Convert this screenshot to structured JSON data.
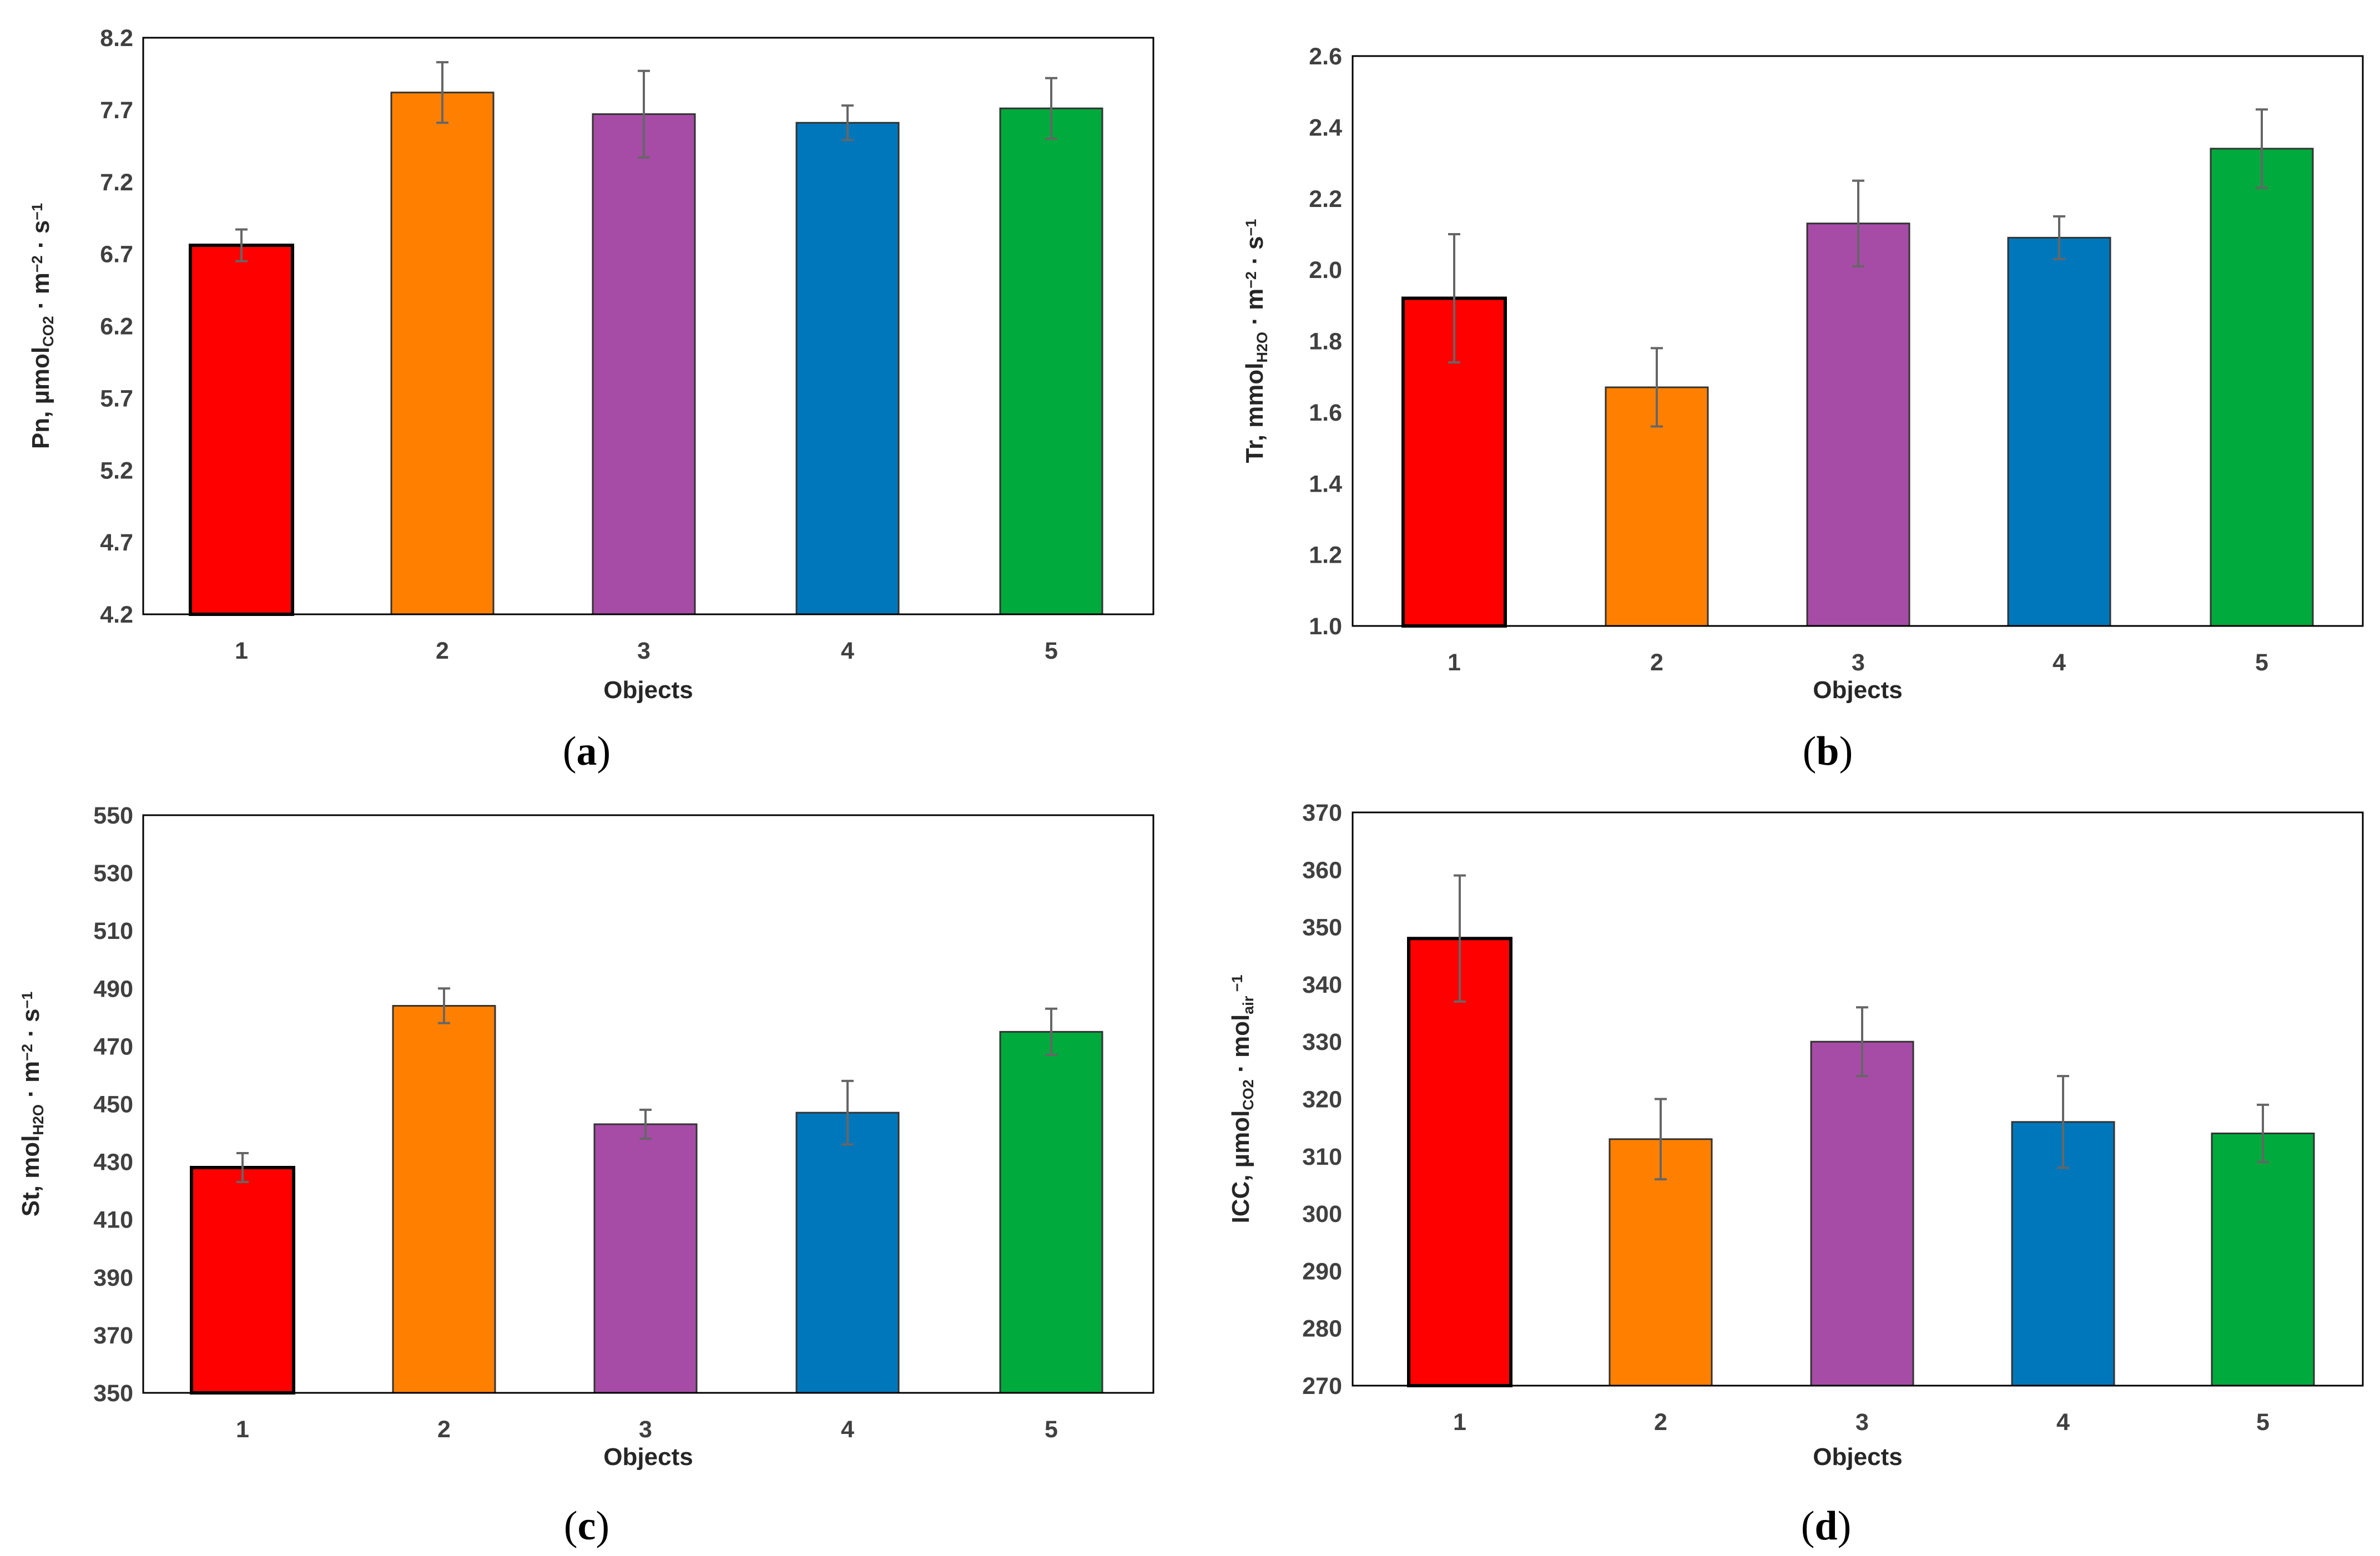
{
  "figure": {
    "panels": [
      {
        "id": "a",
        "label_open": "(",
        "label_letter": "a",
        "label_close": ")",
        "ylabel_parts": [
          {
            "text": "Pn, µmol",
            "style": "normal"
          },
          {
            "text": "CO2",
            "style": "sub"
          },
          {
            "text": " · m",
            "style": "normal"
          },
          {
            "text": "−2",
            "style": "sup"
          },
          {
            "text": " · s",
            "style": "normal"
          },
          {
            "text": "−1",
            "style": "sup"
          }
        ]
      },
      {
        "id": "b",
        "label_open": "(",
        "label_letter": "b",
        "label_close": ")",
        "ylabel_parts": [
          {
            "text": "Tr, mmol",
            "style": "normal"
          },
          {
            "text": "H2O",
            "style": "sub"
          },
          {
            "text": " · m",
            "style": "normal"
          },
          {
            "text": "−2",
            "style": "sup"
          },
          {
            "text": " · s",
            "style": "normal"
          },
          {
            "text": "−1",
            "style": "sup"
          }
        ]
      },
      {
        "id": "c",
        "label_open": "(",
        "label_letter": "c",
        "label_close": ")",
        "ylabel_parts": [
          {
            "text": "St, mol",
            "style": "normal"
          },
          {
            "text": "H2O",
            "style": "sub"
          },
          {
            "text": " · m",
            "style": "normal"
          },
          {
            "text": "−2",
            "style": "sup"
          },
          {
            "text": " · s",
            "style": "normal"
          },
          {
            "text": "−1",
            "style": "sup"
          }
        ]
      },
      {
        "id": "d",
        "label_open": "(",
        "label_letter": "d",
        "label_close": ")",
        "ylabel_parts": [
          {
            "text": "ICC, µmol",
            "style": "normal"
          },
          {
            "text": "CO2",
            "style": "sub"
          },
          {
            "text": " · mol",
            "style": "normal"
          },
          {
            "text": "air",
            "style": "sub"
          },
          {
            "text": " −1",
            "style": "sup"
          }
        ]
      }
    ]
  },
  "chart_data": [
    {
      "type": "bar",
      "title": "",
      "xlabel": "Objects",
      "ylabel": "Pn, µmolCO2 · m−2 · s−1",
      "categories": [
        "1",
        "2",
        "3",
        "4",
        "5"
      ],
      "values": [
        6.76,
        7.82,
        7.67,
        7.61,
        7.71
      ],
      "errors": [
        0.11,
        0.21,
        0.3,
        0.12,
        0.21
      ],
      "colors": [
        "#ff0000",
        "#ff8000",
        "#a64ca6",
        "#0077bb",
        "#00aa3c"
      ],
      "edgecolors": [
        "#000000",
        "#333333",
        "#333333",
        "#333333",
        "#333333"
      ],
      "ylim": [
        4.2,
        8.2
      ],
      "yticks": [
        "4.2",
        "4.7",
        "5.2",
        "5.7",
        "6.2",
        "6.7",
        "7.2",
        "7.7",
        "8.2"
      ],
      "grid": false
    },
    {
      "type": "bar",
      "title": "",
      "xlabel": "Objects",
      "ylabel": "Tr, mmolH2O · m−2 · s−1",
      "categories": [
        "1",
        "2",
        "3",
        "4",
        "5"
      ],
      "values": [
        1.92,
        1.67,
        2.13,
        2.09,
        2.34
      ],
      "errors": [
        0.18,
        0.11,
        0.12,
        0.06,
        0.11
      ],
      "colors": [
        "#ff0000",
        "#ff8000",
        "#a64ca6",
        "#0077bb",
        "#00aa3c"
      ],
      "edgecolors": [
        "#000000",
        "#333333",
        "#333333",
        "#333333",
        "#333333"
      ],
      "ylim": [
        1.0,
        2.6
      ],
      "yticks": [
        "1.0",
        "1.2",
        "1.4",
        "1.6",
        "1.8",
        "2.0",
        "2.2",
        "2.4",
        "2.6"
      ],
      "grid": false
    },
    {
      "type": "bar",
      "title": "",
      "xlabel": "Objects",
      "ylabel": "St, molH2O · m−2 · s−1",
      "categories": [
        "1",
        "2",
        "3",
        "4",
        "5"
      ],
      "values": [
        428,
        484,
        443,
        447,
        475
      ],
      "errors": [
        5,
        6,
        5,
        11,
        8
      ],
      "colors": [
        "#ff0000",
        "#ff8000",
        "#a64ca6",
        "#0077bb",
        "#00aa3c"
      ],
      "edgecolors": [
        "#000000",
        "#333333",
        "#333333",
        "#333333",
        "#333333"
      ],
      "ylim": [
        350,
        550
      ],
      "yticks": [
        "350",
        "370",
        "390",
        "410",
        "430",
        "450",
        "470",
        "490",
        "510",
        "530",
        "550"
      ],
      "grid": false
    },
    {
      "type": "bar",
      "title": "",
      "xlabel": "Objects",
      "ylabel": "ICC, µmolCO2 · molair −1",
      "categories": [
        "1",
        "2",
        "3",
        "4",
        "5"
      ],
      "values": [
        348,
        313,
        330,
        316,
        314
      ],
      "errors": [
        11,
        7,
        6,
        8,
        5
      ],
      "colors": [
        "#ff0000",
        "#ff8000",
        "#a64ca6",
        "#0077bb",
        "#00aa3c"
      ],
      "edgecolors": [
        "#000000",
        "#333333",
        "#333333",
        "#333333",
        "#333333"
      ],
      "ylim": [
        270,
        370
      ],
      "yticks": [
        "270",
        "280",
        "290",
        "300",
        "310",
        "320",
        "330",
        "340",
        "350",
        "360",
        "370"
      ],
      "grid": false
    }
  ]
}
